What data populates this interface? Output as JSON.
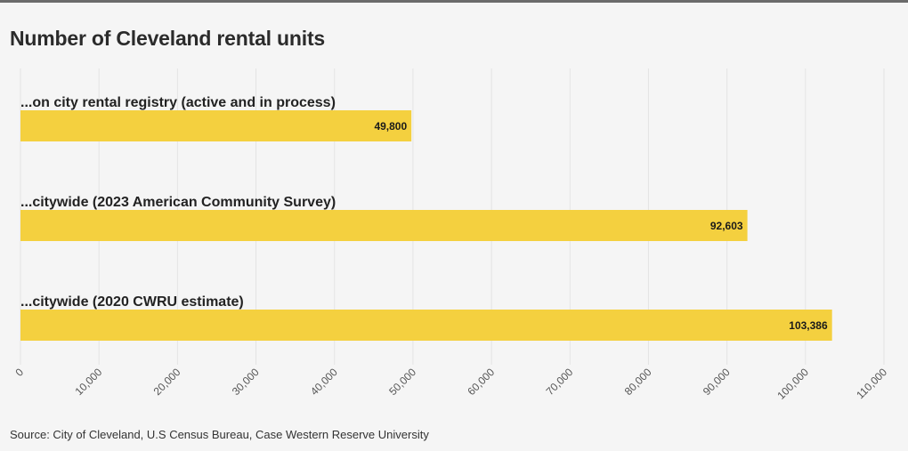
{
  "chart_data": {
    "type": "bar",
    "orientation": "horizontal",
    "title": "Number of Cleveland rental units",
    "categories": [
      "...on city rental registry (active and in process)",
      "...citywide (2023 American Community Survey)",
      "...citywide (2020 CWRU estimate)"
    ],
    "values": [
      49800,
      92603,
      103386
    ],
    "value_labels": [
      "49,800",
      "92,603",
      "103,386"
    ],
    "xlim": [
      0,
      110000
    ],
    "ticks": [
      0,
      10000,
      20000,
      30000,
      40000,
      50000,
      60000,
      70000,
      80000,
      90000,
      100000,
      110000
    ],
    "tick_labels": [
      "0",
      "10,000",
      "20,000",
      "30,000",
      "40,000",
      "50,000",
      "60,000",
      "70,000",
      "80,000",
      "90,000",
      "100,000",
      "110,000"
    ],
    "grid": true,
    "bar_color": "#f4d03f"
  },
  "source": "Source: City of Cleveland, U.S Census Bureau, Case Western Reserve University"
}
